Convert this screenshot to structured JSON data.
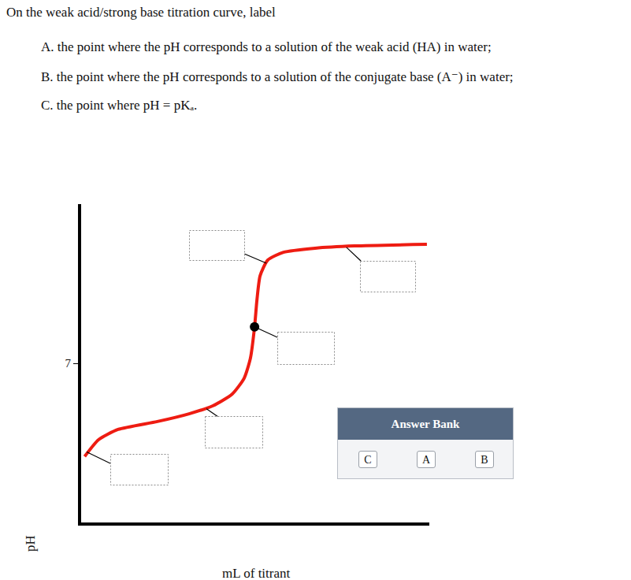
{
  "question": {
    "intro": "On the weak acid/strong base titration curve, label",
    "items": [
      "A. the point where the pH corresponds to a solution of the weak acid (HA) in water;",
      "B. the point where the pH corresponds to a solution of the conjugate base (A⁻) in water;",
      "C. the point where pH = pKₐ."
    ]
  },
  "chart_data": {
    "type": "line",
    "x": [
      1,
      5.0,
      10.6,
      21.9,
      31.0,
      37.8,
      43.4,
      46.8,
      48.6,
      49.8,
      50.5,
      51.4,
      53.6,
      58.1,
      67.2,
      78.5,
      99.3
    ],
    "values": [
      2.9,
      3.64,
      4.09,
      4.44,
      4.78,
      5.13,
      5.65,
      6.34,
      7.21,
      8.59,
      9.8,
      10.85,
      11.54,
      11.88,
      12.06,
      12.16,
      12.23
    ],
    "color": "#ee1c12",
    "xlim": [
      0,
      100
    ],
    "ylim": [
      0,
      14
    ],
    "xticks": [],
    "yticks": [
      7
    ],
    "tick_labels": "y",
    "x_label": "mL of titrant",
    "y_label": "pH",
    "highlight": {
      "x": 49.8,
      "y": 8.6,
      "color": "#000000"
    },
    "callouts": [
      {
        "x": 1.6,
        "y": 3.1
      },
      {
        "x": 36.0,
        "y": 5.0
      },
      {
        "x": 53.2,
        "y": 11.4
      },
      {
        "x": 49.8,
        "y": 8.6
      },
      {
        "x": 76.2,
        "y": 12.1
      }
    ]
  },
  "answer_bank": {
    "title": "Answer Bank",
    "choices": [
      "C",
      "A",
      "B"
    ]
  }
}
